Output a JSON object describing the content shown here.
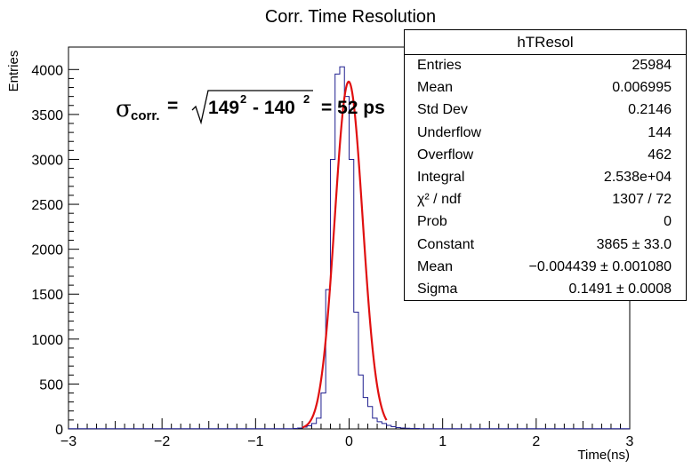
{
  "chart_data": {
    "type": "histogram",
    "title": "Corr. Time Resolution",
    "xlabel": "Time(ns)",
    "ylabel": "Entries",
    "xlim": [
      -3,
      3
    ],
    "ylim": [
      0,
      4250
    ],
    "x_ticks": [
      -3,
      -2,
      -1,
      0,
      1,
      2,
      3
    ],
    "x_tick_labels": [
      "−3",
      "−2",
      "−1",
      "0",
      "1",
      "2",
      "3"
    ],
    "y_ticks": [
      0,
      500,
      1000,
      1500,
      2000,
      2500,
      3000,
      3500,
      4000
    ],
    "y_tick_labels": [
      "0",
      "500",
      "1000",
      "1500",
      "2000",
      "2500",
      "3000",
      "3500",
      "4000"
    ],
    "series": [
      {
        "kind": "histogram",
        "color": "#1f1f8f",
        "bin_width": 0.05,
        "bin_low_edges": [
          -0.6,
          -0.55,
          -0.5,
          -0.45,
          -0.4,
          -0.35,
          -0.3,
          -0.25,
          -0.2,
          -0.15,
          -0.1,
          -0.05,
          0.0,
          0.05,
          0.1,
          0.15,
          0.2,
          0.25,
          0.3,
          0.35,
          0.4,
          0.45,
          0.5,
          0.55,
          0.6,
          0.65,
          0.7,
          0.75,
          0.8
        ],
        "values": [
          5,
          10,
          20,
          35,
          60,
          120,
          400,
          1550,
          3000,
          3950,
          4030,
          3700,
          3000,
          1300,
          600,
          350,
          250,
          120,
          80,
          60,
          40,
          25,
          15,
          10,
          8,
          5,
          5,
          3,
          2
        ],
        "low_level_ranges": [
          {
            "from": -3,
            "to": -0.6,
            "value": 2
          },
          {
            "from": 0.85,
            "to": 3,
            "value": 2
          }
        ]
      },
      {
        "kind": "gaussian_fit",
        "color": "#e01010",
        "constant": 3865,
        "mean": -0.004439,
        "sigma": 0.1491,
        "range": [
          -0.5,
          0.4
        ]
      }
    ]
  },
  "stats": {
    "title": "hTResol",
    "rows": [
      {
        "key": "Entries",
        "value": "25984"
      },
      {
        "key": "Mean",
        "value": "0.006995"
      },
      {
        "key": "Std Dev",
        "value": "0.2146"
      },
      {
        "key": "Underflow",
        "value": "144"
      },
      {
        "key": "Overflow",
        "value": "462"
      },
      {
        "key": "Integral",
        "value": "2.538e+04"
      },
      {
        "key": "χ² / ndf",
        "value": "1307 / 72"
      },
      {
        "key": "Prob",
        "value": "0"
      },
      {
        "key": "Constant",
        "value": "3865 ± 33.0"
      },
      {
        "key": "Mean",
        "value": "−0.004439 ± 0.001080"
      },
      {
        "key": "Sigma",
        "value": "0.1491 ± 0.0008"
      }
    ]
  },
  "annotation": {
    "sigma": "σ",
    "sigma_sub": "corr.",
    "equals": "=",
    "base1": "149",
    "exp1": "2",
    "minus": "- 140",
    "exp2": "2",
    "result": "= 52 ps"
  }
}
